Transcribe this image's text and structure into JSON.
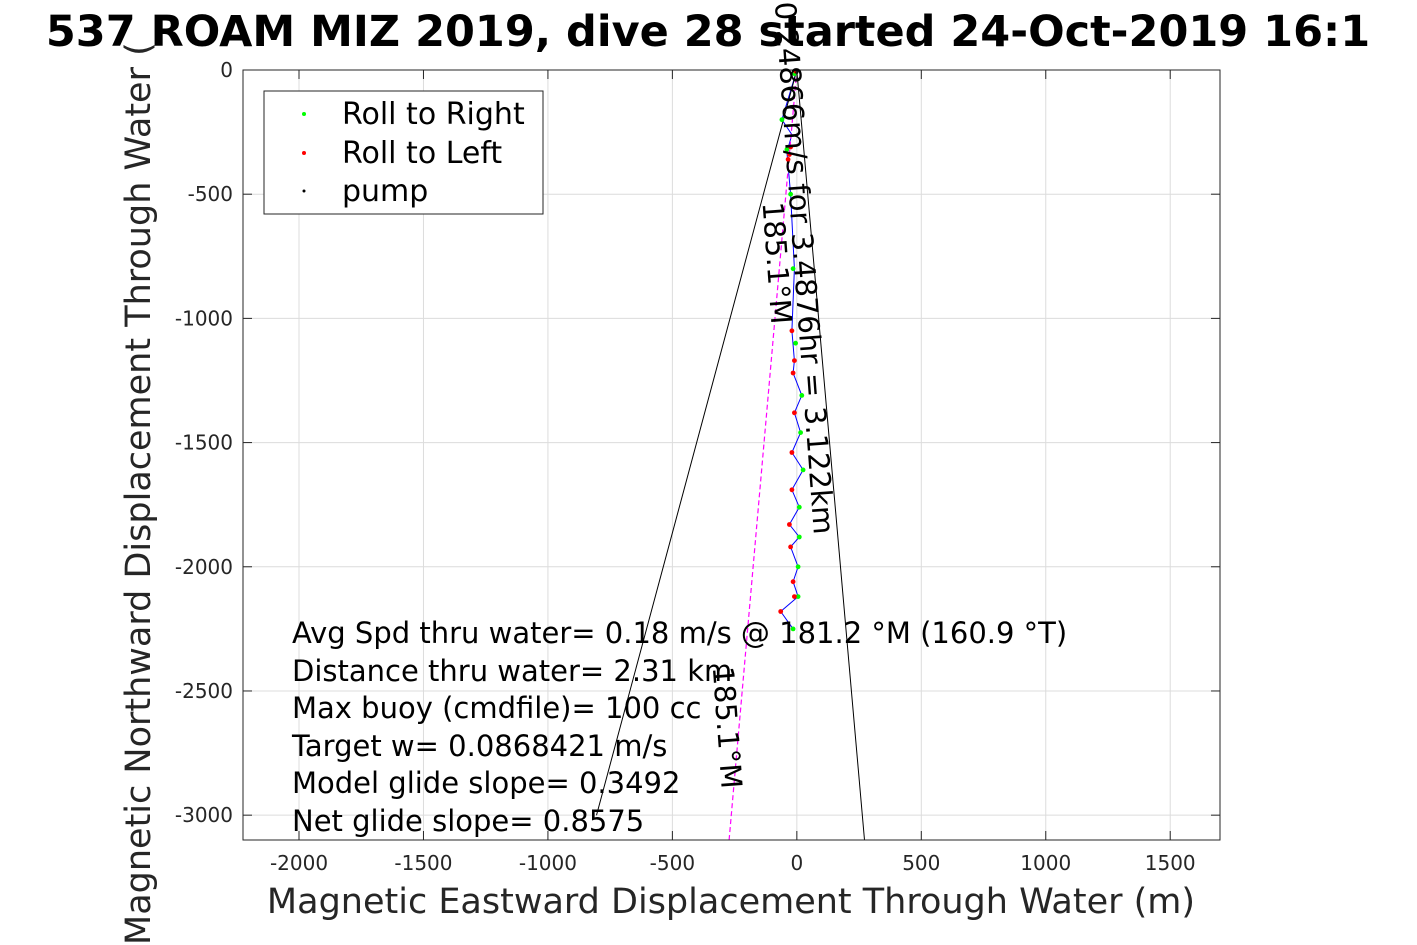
{
  "chart_data": {
    "type": "scatter",
    "title": "537 ROAM MIZ 2019, dive 28 started 24-Oct-2019 16:1",
    "xlabel": "Magnetic Eastward Displacement Through Water (m)",
    "ylabel": "Magnetic Northward Displacement Through Water (",
    "xlim": [
      -2225,
      1700
    ],
    "ylim": [
      -3100,
      0
    ],
    "xticks": [
      -2000,
      -1500,
      -1000,
      -500,
      0,
      500,
      1000,
      1500
    ],
    "yticks": [
      0,
      -500,
      -1000,
      -1500,
      -2000,
      -2500,
      -3000
    ],
    "xtick_labels": [
      "-2000",
      "-1500",
      "-1000",
      "-500",
      "0",
      "500",
      "1000",
      "1500"
    ],
    "ytick_labels": [
      "0",
      "-500",
      "-1000",
      "-1500",
      "-2000",
      "-2500",
      "-3000"
    ],
    "grid": true,
    "legend_position": "top-left",
    "legend": [
      {
        "label": "Roll to Right",
        "color": "#00ff00"
      },
      {
        "label": "Roll to Left",
        "color": "#ff0000"
      },
      {
        "label": "pump",
        "color": "#000000"
      }
    ],
    "series": [
      {
        "name": "Roll to Right",
        "color": "#00ff00",
        "points": [
          [
            -10,
            -15
          ],
          [
            -60,
            -200
          ],
          [
            -40,
            -320
          ],
          [
            -25,
            -500
          ],
          [
            -15,
            -800
          ],
          [
            -5,
            -1100
          ],
          [
            20,
            -1310
          ],
          [
            15,
            -1460
          ],
          [
            25,
            -1610
          ],
          [
            10,
            -1760
          ],
          [
            10,
            -1880
          ],
          [
            5,
            -2000
          ],
          [
            5,
            -2120
          ],
          [
            -15,
            -2250
          ]
        ]
      },
      {
        "name": "Roll to Left",
        "color": "#ff0000",
        "points": [
          [
            -5,
            -5
          ],
          [
            -25,
            -310
          ],
          [
            -30,
            -340
          ],
          [
            -35,
            -360
          ],
          [
            -20,
            -1050
          ],
          [
            -10,
            -1170
          ],
          [
            -15,
            -1220
          ],
          [
            -10,
            -1380
          ],
          [
            -20,
            -1540
          ],
          [
            -20,
            -1690
          ],
          [
            -30,
            -1830
          ],
          [
            -25,
            -1920
          ],
          [
            -15,
            -2060
          ],
          [
            -10,
            -2120
          ],
          [
            -65,
            -2180
          ]
        ]
      },
      {
        "name": "pump",
        "color": "#000000",
        "points": [
          [
            0,
            0
          ],
          [
            0,
            -10
          ]
        ]
      },
      {
        "name": "",
        "color": "#0000ff",
        "style": "line",
        "points": [
          [
            0,
            0
          ],
          [
            -60,
            -200
          ],
          [
            -20,
            -260
          ],
          [
            -40,
            -330
          ],
          [
            -25,
            -500
          ],
          [
            -10,
            -800
          ],
          [
            -20,
            -1050
          ],
          [
            -10,
            -1170
          ],
          [
            -15,
            -1220
          ],
          [
            20,
            -1310
          ],
          [
            -10,
            -1380
          ],
          [
            15,
            -1460
          ],
          [
            -20,
            -1540
          ],
          [
            25,
            -1610
          ],
          [
            -20,
            -1690
          ],
          [
            10,
            -1760
          ],
          [
            -30,
            -1830
          ],
          [
            10,
            -1880
          ],
          [
            -25,
            -1920
          ],
          [
            5,
            -2000
          ],
          [
            -15,
            -2060
          ],
          [
            5,
            -2120
          ],
          [
            -65,
            -2180
          ],
          [
            -15,
            -2250
          ]
        ]
      },
      {
        "name": "",
        "color": "#ff00ff",
        "style": "dashed",
        "points": [
          [
            0,
            0
          ],
          [
            -272,
            -3100
          ]
        ]
      },
      {
        "name": "",
        "color": "#000000",
        "style": "line",
        "points": [
          [
            -805,
            -3000
          ],
          [
            0,
            0
          ],
          [
            272,
            -3100
          ]
        ]
      }
    ],
    "rotated_labels": [
      {
        "text": "0.24866m/s for 3.4876hr = 3.122km",
        "x": -10,
        "y": -800,
        "angle": 85.8
      },
      {
        "text": "185.1°M",
        "x": -120,
        "y": -780,
        "angle": 85.8
      },
      {
        "text": "185.1°M",
        "x": -320,
        "y": -2650,
        "angle": 85.8
      }
    ],
    "annotations": [
      "Avg Spd thru water=  0.18 m/s @ 181.2 °M (160.9 °T)",
      "Distance thru water=  2.31 km",
      "Max buoy (cmdfile)= 100 cc",
      "Target w= 0.0868421 m/s",
      "Model glide slope= 0.3492",
      "Net glide slope= 0.8575"
    ]
  }
}
